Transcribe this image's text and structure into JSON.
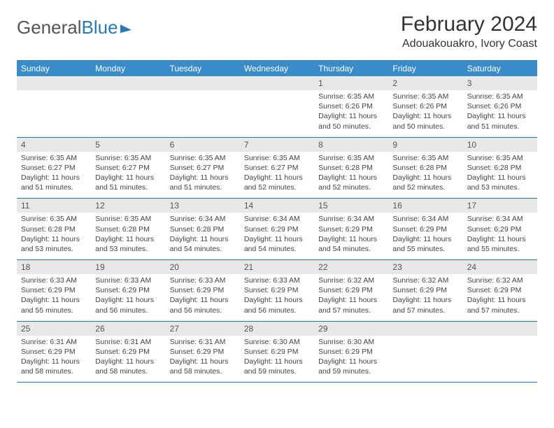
{
  "brand": {
    "part1": "General",
    "part2": "Blue"
  },
  "title": "February 2024",
  "location": "Adouakouakro, Ivory Coast",
  "colors": {
    "header_bg": "#3a8cc8",
    "border": "#2a7ab0",
    "daynum_bg": "#e8e8e8",
    "text": "#333333"
  },
  "day_names": [
    "Sunday",
    "Monday",
    "Tuesday",
    "Wednesday",
    "Thursday",
    "Friday",
    "Saturday"
  ],
  "weeks": [
    [
      {
        "n": "",
        "sr": "",
        "ss": "",
        "dl": ""
      },
      {
        "n": "",
        "sr": "",
        "ss": "",
        "dl": ""
      },
      {
        "n": "",
        "sr": "",
        "ss": "",
        "dl": ""
      },
      {
        "n": "",
        "sr": "",
        "ss": "",
        "dl": ""
      },
      {
        "n": "1",
        "sr": "Sunrise: 6:35 AM",
        "ss": "Sunset: 6:26 PM",
        "dl": "Daylight: 11 hours and 50 minutes."
      },
      {
        "n": "2",
        "sr": "Sunrise: 6:35 AM",
        "ss": "Sunset: 6:26 PM",
        "dl": "Daylight: 11 hours and 50 minutes."
      },
      {
        "n": "3",
        "sr": "Sunrise: 6:35 AM",
        "ss": "Sunset: 6:26 PM",
        "dl": "Daylight: 11 hours and 51 minutes."
      }
    ],
    [
      {
        "n": "4",
        "sr": "Sunrise: 6:35 AM",
        "ss": "Sunset: 6:27 PM",
        "dl": "Daylight: 11 hours and 51 minutes."
      },
      {
        "n": "5",
        "sr": "Sunrise: 6:35 AM",
        "ss": "Sunset: 6:27 PM",
        "dl": "Daylight: 11 hours and 51 minutes."
      },
      {
        "n": "6",
        "sr": "Sunrise: 6:35 AM",
        "ss": "Sunset: 6:27 PM",
        "dl": "Daylight: 11 hours and 51 minutes."
      },
      {
        "n": "7",
        "sr": "Sunrise: 6:35 AM",
        "ss": "Sunset: 6:27 PM",
        "dl": "Daylight: 11 hours and 52 minutes."
      },
      {
        "n": "8",
        "sr": "Sunrise: 6:35 AM",
        "ss": "Sunset: 6:28 PM",
        "dl": "Daylight: 11 hours and 52 minutes."
      },
      {
        "n": "9",
        "sr": "Sunrise: 6:35 AM",
        "ss": "Sunset: 6:28 PM",
        "dl": "Daylight: 11 hours and 52 minutes."
      },
      {
        "n": "10",
        "sr": "Sunrise: 6:35 AM",
        "ss": "Sunset: 6:28 PM",
        "dl": "Daylight: 11 hours and 53 minutes."
      }
    ],
    [
      {
        "n": "11",
        "sr": "Sunrise: 6:35 AM",
        "ss": "Sunset: 6:28 PM",
        "dl": "Daylight: 11 hours and 53 minutes."
      },
      {
        "n": "12",
        "sr": "Sunrise: 6:35 AM",
        "ss": "Sunset: 6:28 PM",
        "dl": "Daylight: 11 hours and 53 minutes."
      },
      {
        "n": "13",
        "sr": "Sunrise: 6:34 AM",
        "ss": "Sunset: 6:28 PM",
        "dl": "Daylight: 11 hours and 54 minutes."
      },
      {
        "n": "14",
        "sr": "Sunrise: 6:34 AM",
        "ss": "Sunset: 6:29 PM",
        "dl": "Daylight: 11 hours and 54 minutes."
      },
      {
        "n": "15",
        "sr": "Sunrise: 6:34 AM",
        "ss": "Sunset: 6:29 PM",
        "dl": "Daylight: 11 hours and 54 minutes."
      },
      {
        "n": "16",
        "sr": "Sunrise: 6:34 AM",
        "ss": "Sunset: 6:29 PM",
        "dl": "Daylight: 11 hours and 55 minutes."
      },
      {
        "n": "17",
        "sr": "Sunrise: 6:34 AM",
        "ss": "Sunset: 6:29 PM",
        "dl": "Daylight: 11 hours and 55 minutes."
      }
    ],
    [
      {
        "n": "18",
        "sr": "Sunrise: 6:33 AM",
        "ss": "Sunset: 6:29 PM",
        "dl": "Daylight: 11 hours and 55 minutes."
      },
      {
        "n": "19",
        "sr": "Sunrise: 6:33 AM",
        "ss": "Sunset: 6:29 PM",
        "dl": "Daylight: 11 hours and 56 minutes."
      },
      {
        "n": "20",
        "sr": "Sunrise: 6:33 AM",
        "ss": "Sunset: 6:29 PM",
        "dl": "Daylight: 11 hours and 56 minutes."
      },
      {
        "n": "21",
        "sr": "Sunrise: 6:33 AM",
        "ss": "Sunset: 6:29 PM",
        "dl": "Daylight: 11 hours and 56 minutes."
      },
      {
        "n": "22",
        "sr": "Sunrise: 6:32 AM",
        "ss": "Sunset: 6:29 PM",
        "dl": "Daylight: 11 hours and 57 minutes."
      },
      {
        "n": "23",
        "sr": "Sunrise: 6:32 AM",
        "ss": "Sunset: 6:29 PM",
        "dl": "Daylight: 11 hours and 57 minutes."
      },
      {
        "n": "24",
        "sr": "Sunrise: 6:32 AM",
        "ss": "Sunset: 6:29 PM",
        "dl": "Daylight: 11 hours and 57 minutes."
      }
    ],
    [
      {
        "n": "25",
        "sr": "Sunrise: 6:31 AM",
        "ss": "Sunset: 6:29 PM",
        "dl": "Daylight: 11 hours and 58 minutes."
      },
      {
        "n": "26",
        "sr": "Sunrise: 6:31 AM",
        "ss": "Sunset: 6:29 PM",
        "dl": "Daylight: 11 hours and 58 minutes."
      },
      {
        "n": "27",
        "sr": "Sunrise: 6:31 AM",
        "ss": "Sunset: 6:29 PM",
        "dl": "Daylight: 11 hours and 58 minutes."
      },
      {
        "n": "28",
        "sr": "Sunrise: 6:30 AM",
        "ss": "Sunset: 6:29 PM",
        "dl": "Daylight: 11 hours and 59 minutes."
      },
      {
        "n": "29",
        "sr": "Sunrise: 6:30 AM",
        "ss": "Sunset: 6:29 PM",
        "dl": "Daylight: 11 hours and 59 minutes."
      },
      {
        "n": "",
        "sr": "",
        "ss": "",
        "dl": ""
      },
      {
        "n": "",
        "sr": "",
        "ss": "",
        "dl": ""
      }
    ]
  ]
}
